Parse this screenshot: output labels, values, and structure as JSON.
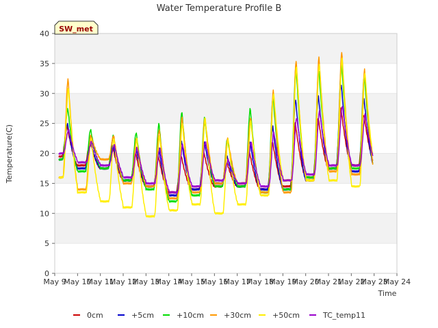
{
  "chart_data": {
    "type": "line",
    "title": "Water Temperature Profile B",
    "xlabel": "Time",
    "ylabel": "Temperature(C)",
    "site_label": "SW_met",
    "x_ticks": [
      "May 9",
      "May 10",
      "May 11",
      "May 12",
      "May 13",
      "May 14",
      "May 15",
      "May 16",
      "May 17",
      "May 18",
      "May 19",
      "May 20",
      "May 21",
      "May 22",
      "May 23",
      "May 24"
    ],
    "y_ticks": [
      0,
      5,
      10,
      15,
      20,
      25,
      30,
      35,
      40
    ],
    "xlim": [
      "May 9",
      "May 24"
    ],
    "ylim": [
      0,
      40
    ],
    "grid": "horizontal bands",
    "legend_position": "bottom",
    "x_unit": "day index from May 9 (0 = May 9, 14 = May 23)",
    "series": [
      {
        "name": "0cm",
        "color": "#cc0000",
        "min": [
          19.5,
          18.0,
          17.5,
          15.5,
          14.5,
          13.5,
          14.0,
          14.5,
          14.5,
          14.0,
          14.5,
          16.0,
          17.5,
          18.0,
          18.5,
          18.5
        ],
        "max": [
          null,
          24.5,
          22.0,
          21.0,
          20.0,
          19.5,
          19.5,
          20.0,
          18.5,
          20.0,
          22.0,
          25.0,
          26.0,
          27.5,
          26.5,
          null
        ]
      },
      {
        "name": "+5cm",
        "color": "#0000cc",
        "min": [
          19.0,
          17.5,
          17.5,
          15.5,
          14.5,
          13.0,
          14.0,
          15.0,
          14.5,
          14.0,
          14.0,
          15.5,
          17.5,
          17.0,
          17.5,
          20.5
        ],
        "max": [
          null,
          25.0,
          22.0,
          21.5,
          21.0,
          21.0,
          22.0,
          22.0,
          19.5,
          22.0,
          24.5,
          29.0,
          29.5,
          31.5,
          29.0,
          null
        ]
      },
      {
        "name": "+10cm",
        "color": "#00dd00",
        "min": [
          19.0,
          17.0,
          17.5,
          15.5,
          14.0,
          12.0,
          13.0,
          14.5,
          14.5,
          13.5,
          14.0,
          16.0,
          17.5,
          17.5,
          17.0,
          19.5
        ],
        "max": [
          null,
          27.5,
          24.0,
          23.0,
          23.5,
          25.0,
          27.0,
          26.0,
          22.5,
          27.5,
          29.5,
          34.5,
          34.0,
          35.0,
          33.0,
          null
        ]
      },
      {
        "name": "+30cm",
        "color": "#ff9900",
        "min": [
          16.0,
          14.0,
          19.0,
          15.0,
          14.5,
          12.5,
          13.5,
          15.0,
          15.0,
          13.5,
          13.5,
          15.5,
          17.0,
          16.5,
          16.5,
          18.5
        ],
        "max": [
          null,
          32.5,
          23.0,
          23.0,
          22.5,
          24.0,
          26.0,
          26.0,
          22.5,
          26.0,
          30.5,
          35.5,
          36.0,
          37.0,
          34.0,
          null
        ]
      },
      {
        "name": "+50cm",
        "color": "#ffee00",
        "min": [
          16.0,
          13.5,
          12.0,
          11.0,
          9.5,
          10.5,
          11.5,
          10.0,
          11.5,
          13.0,
          15.5,
          15.5,
          15.5,
          14.5,
          18.0,
          18.0
        ],
        "max": [
          null,
          31.0,
          22.5,
          22.5,
          22.5,
          23.0,
          25.0,
          26.0,
          22.5,
          25.5,
          30.0,
          34.5,
          35.0,
          36.0,
          33.5,
          null
        ]
      },
      {
        "name": "TC_temp11",
        "color": "#9900cc",
        "min": [
          20.0,
          18.5,
          18.0,
          16.0,
          15.0,
          13.5,
          14.5,
          15.5,
          15.0,
          14.5,
          15.5,
          16.5,
          18.0,
          18.0,
          18.5,
          21.0
        ],
        "max": [
          null,
          24.0,
          22.0,
          21.5,
          21.0,
          21.0,
          21.5,
          22.0,
          19.0,
          22.0,
          23.5,
          26.0,
          27.0,
          28.0,
          26.5,
          null
        ]
      }
    ]
  }
}
